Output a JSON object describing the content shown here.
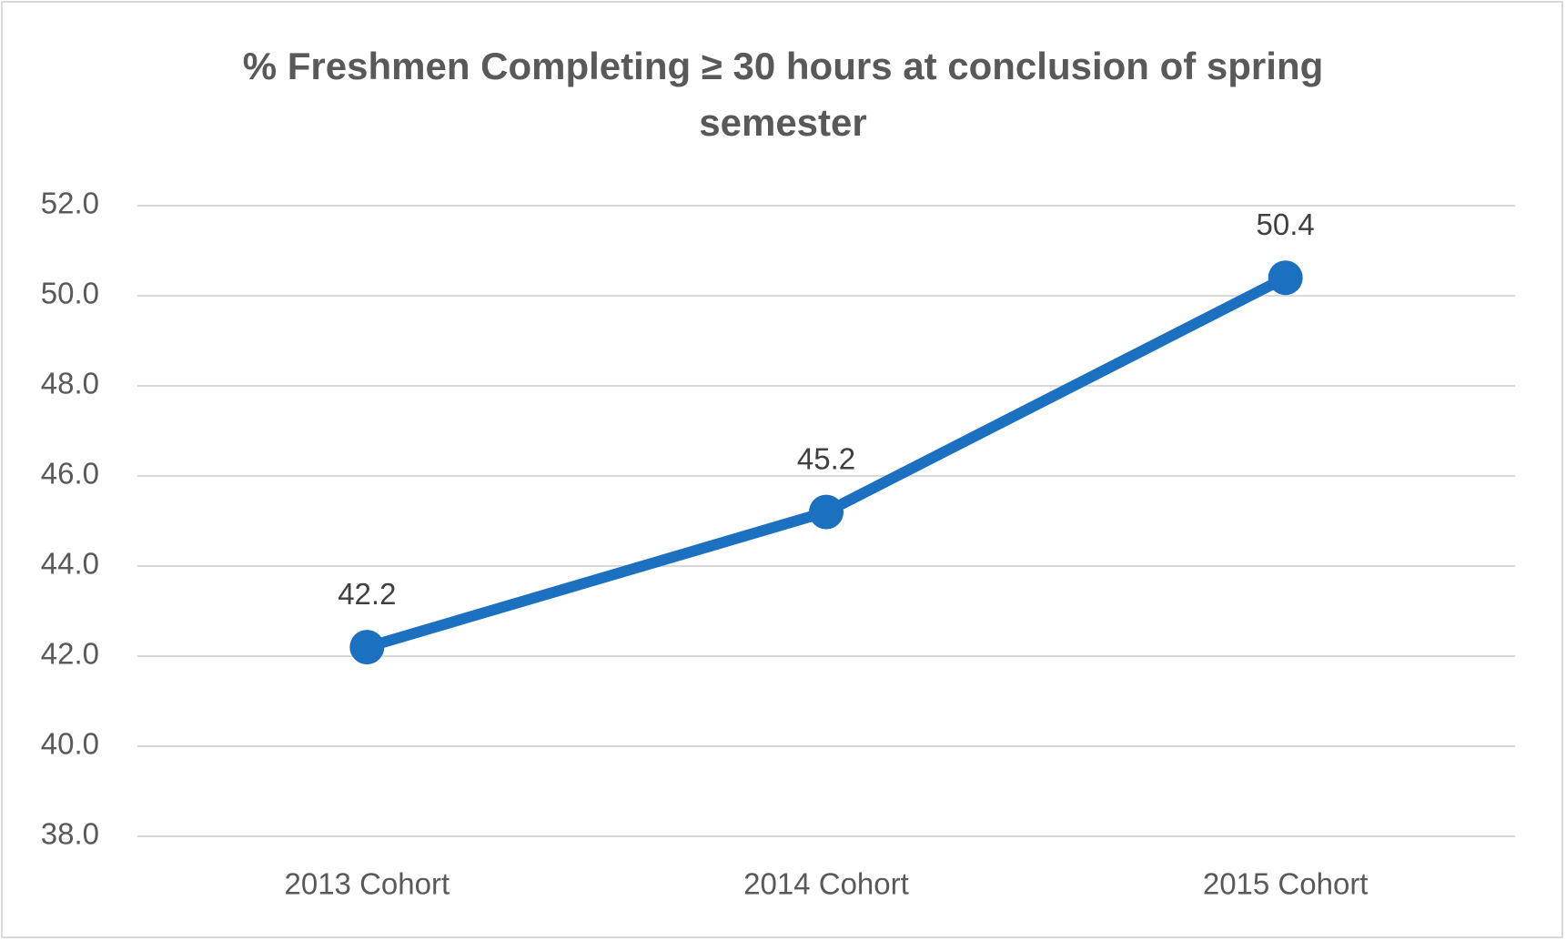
{
  "chart_data": {
    "type": "line",
    "title": "% Freshmen  Completing ≥ 30 hours at conclusion of spring semester",
    "categories": [
      "2013 Cohort",
      "2014 Cohort",
      "2015 Cohort"
    ],
    "values": [
      42.2,
      45.2,
      50.4
    ],
    "color": "#1b70c0",
    "ylim": [
      38,
      52
    ],
    "yticks": [
      {
        "value": 38,
        "label": "38.0"
      },
      {
        "value": 40,
        "label": "40.0"
      },
      {
        "value": 42,
        "label": "42.0"
      },
      {
        "value": 44,
        "label": "44.0"
      },
      {
        "value": 46,
        "label": "46.0"
      },
      {
        "value": 48,
        "label": "48.0"
      },
      {
        "value": 50,
        "label": "50.0"
      },
      {
        "value": 52,
        "label": "52.0"
      }
    ],
    "grid": true
  }
}
